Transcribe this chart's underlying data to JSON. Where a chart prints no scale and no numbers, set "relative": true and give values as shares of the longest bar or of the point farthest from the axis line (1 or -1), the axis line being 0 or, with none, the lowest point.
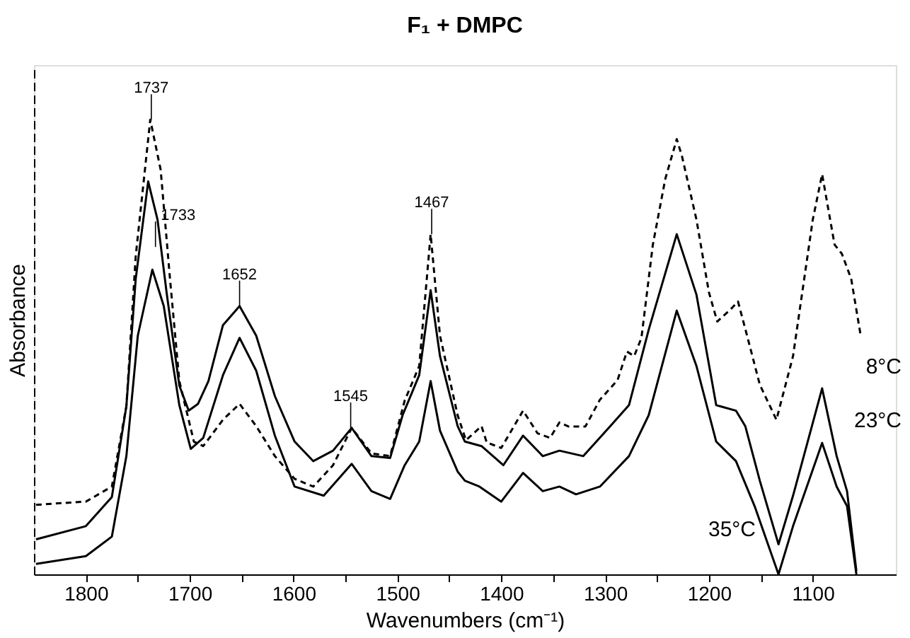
{
  "chart_data": {
    "type": "line",
    "title": "F₁ + DMPC",
    "xlabel": "Wavenumbers (cm⁻¹)",
    "ylabel": "Absorbance",
    "relative": true,
    "xlim": [
      1850,
      1020
    ],
    "xticks": [
      1800,
      {
        "value": 1750,
        "label": null
      },
      1700,
      {
        "value": 1650,
        "label": null
      },
      1600,
      {
        "value": 1550,
        "label": null
      },
      1500,
      {
        "value": 1450,
        "label": null
      },
      1400,
      {
        "value": 1350,
        "label": null
      },
      1300,
      {
        "value": 1250,
        "label": null
      },
      1200,
      {
        "value": 1150,
        "label": null
      },
      1100
    ],
    "grid": false,
    "legend": false,
    "marker": "none",
    "annotations": [
      {
        "text": "1737",
        "x": 1737,
        "y": 1.0
      },
      {
        "text": "1733",
        "x": 1733,
        "y": 0.72
      },
      {
        "text": "1652",
        "x": 1652,
        "y": 0.59
      },
      {
        "text": "1545",
        "x": 1545,
        "y": 0.322
      },
      {
        "text": "1467",
        "x": 1467,
        "y": 0.748
      }
    ],
    "series": [
      {
        "name": "8°C",
        "color": "#000000",
        "line_style": "dashed",
        "x": [
          1848,
          1800,
          1775,
          1761,
          1752,
          1738,
          1728,
          1719,
          1710,
          1696,
          1687,
          1668,
          1652,
          1636,
          1618,
          1599,
          1581,
          1562,
          1544,
          1525,
          1507,
          1493,
          1479,
          1468,
          1459,
          1442,
          1434,
          1419,
          1414,
          1400,
          1379,
          1365,
          1353,
          1344,
          1335,
          1319,
          1305,
          1288,
          1279,
          1272,
          1265,
          1254,
          1242,
          1231,
          1226,
          1212,
          1200,
          1192,
          1179,
          1172,
          1165,
          1151,
          1135,
          1119,
          1100,
          1091,
          1079,
          1072,
          1063,
          1054
        ],
        "values": [
          0.153,
          0.16,
          0.193,
          0.37,
          0.7,
          1.0,
          0.89,
          0.65,
          0.425,
          0.292,
          0.282,
          0.34,
          0.375,
          0.326,
          0.26,
          0.21,
          0.193,
          0.24,
          0.322,
          0.266,
          0.26,
          0.382,
          0.458,
          0.748,
          0.525,
          0.35,
          0.295,
          0.326,
          0.29,
          0.278,
          0.36,
          0.31,
          0.3,
          0.334,
          0.325,
          0.325,
          0.384,
          0.427,
          0.49,
          0.48,
          0.52,
          0.725,
          0.87,
          0.957,
          0.92,
          0.78,
          0.62,
          0.556,
          0.583,
          0.6,
          0.54,
          0.417,
          0.34,
          0.48,
          0.78,
          0.88,
          0.725,
          0.705,
          0.65,
          0.527
        ]
      },
      {
        "name": "23°C",
        "color": "#000000",
        "line_style": "solid",
        "x": [
          1848,
          1800,
          1775,
          1761,
          1752,
          1740,
          1731,
          1722,
          1710,
          1701,
          1692,
          1682,
          1668,
          1652,
          1636,
          1618,
          1599,
          1581,
          1562,
          1544,
          1525,
          1507,
          1495,
          1479,
          1468,
          1459,
          1442,
          1435,
          1419,
          1398,
          1379,
          1360,
          1344,
          1321,
          1295,
          1277,
          1258,
          1231,
          1212,
          1193,
          1174,
          1165,
          1151,
          1133,
          1119,
          1091,
          1077,
          1067,
          1058
        ],
        "values": [
          0.077,
          0.106,
          0.17,
          0.37,
          0.65,
          0.864,
          0.78,
          0.615,
          0.415,
          0.36,
          0.375,
          0.425,
          0.548,
          0.59,
          0.525,
          0.392,
          0.292,
          0.249,
          0.272,
          0.322,
          0.26,
          0.256,
          0.35,
          0.438,
          0.625,
          0.48,
          0.326,
          0.292,
          0.282,
          0.24,
          0.305,
          0.26,
          0.272,
          0.26,
          0.326,
          0.372,
          0.538,
          0.748,
          0.615,
          0.372,
          0.36,
          0.326,
          0.206,
          0.066,
          0.173,
          0.409,
          0.26,
          0.183,
          0.007
        ]
      },
      {
        "name": "35°C",
        "color": "#000000",
        "line_style": "solid",
        "x": [
          1848,
          1800,
          1775,
          1761,
          1750,
          1736,
          1725,
          1710,
          1699,
          1687,
          1668,
          1652,
          1636,
          1618,
          1599,
          1571,
          1544,
          1525,
          1507,
          1493,
          1479,
          1468,
          1459,
          1442,
          1435,
          1421,
          1400,
          1379,
          1360,
          1344,
          1328,
          1305,
          1277,
          1258,
          1231,
          1212,
          1193,
          1174,
          1156,
          1133,
          1119,
          1091,
          1077,
          1067,
          1058
        ],
        "values": [
          0.023,
          0.04,
          0.083,
          0.26,
          0.525,
          0.67,
          0.59,
          0.372,
          0.276,
          0.3,
          0.438,
          0.52,
          0.448,
          0.305,
          0.193,
          0.173,
          0.243,
          0.183,
          0.166,
          0.24,
          0.292,
          0.425,
          0.316,
          0.226,
          0.206,
          0.193,
          0.16,
          0.223,
          0.183,
          0.193,
          0.176,
          0.193,
          0.26,
          0.35,
          0.58,
          0.458,
          0.292,
          0.249,
          0.15,
          0.0,
          0.106,
          0.289,
          0.193,
          0.15,
          0.0
        ]
      }
    ]
  }
}
